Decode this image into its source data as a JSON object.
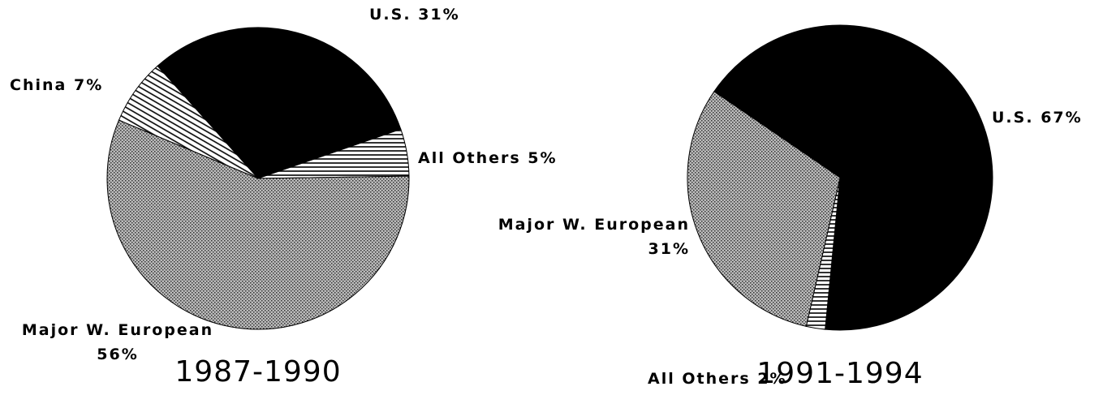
{
  "chart_data": [
    {
      "type": "pie",
      "title": "1987-1990",
      "categories": [
        "U.S.",
        "All Others",
        "Major W. European",
        "China"
      ],
      "values": [
        31,
        5,
        56,
        7
      ],
      "value_labels": [
        "31%",
        "5%",
        "56%",
        "7%"
      ],
      "patterns": [
        "solid",
        "horizontal",
        "crosshatch",
        "diagonal"
      ]
    },
    {
      "type": "pie",
      "title": "1991-1994",
      "categories": [
        "U.S.",
        "All Others",
        "Major W. European"
      ],
      "values": [
        67,
        2,
        31
      ],
      "value_labels": [
        "67%",
        "2%",
        "31%"
      ],
      "patterns": [
        "solid",
        "horizontal",
        "crosshatch"
      ]
    }
  ]
}
